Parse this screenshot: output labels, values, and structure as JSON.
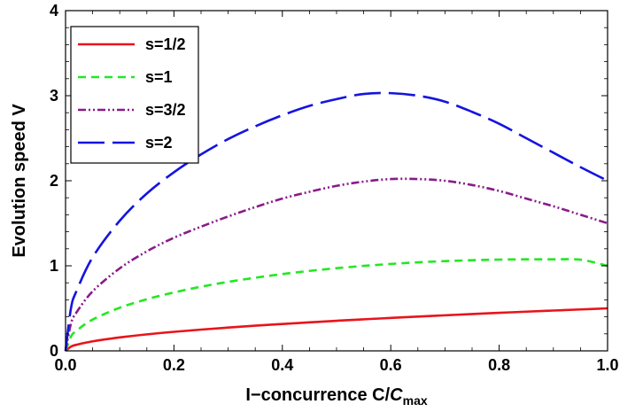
{
  "chart_data": {
    "type": "line",
    "xlabel": "I−concurrence C/",
    "xlabel_var": "C",
    "xlabel_sub": "max",
    "ylabel": "Evolution speed V",
    "xlim": [
      0,
      1
    ],
    "ylim": [
      0,
      4
    ],
    "x_ticks": [
      "0.0",
      "0.2",
      "0.4",
      "0.6",
      "0.8",
      "1.0"
    ],
    "y_ticks": [
      "0",
      "1",
      "2",
      "3",
      "4"
    ],
    "grid": false,
    "legend_position": "top-left",
    "series": [
      {
        "name": "s=1/2",
        "color": "#e8141b",
        "dash": "solid",
        "x": [
          0,
          0.01,
          0.02,
          0.05,
          0.1,
          0.15,
          0.2,
          0.25,
          0.3,
          0.35,
          0.4,
          0.45,
          0.5,
          0.55,
          0.6,
          0.65,
          0.7,
          0.75,
          0.8,
          0.85,
          0.9,
          0.95,
          1.0
        ],
        "y": [
          0,
          0.05,
          0.071,
          0.112,
          0.158,
          0.194,
          0.224,
          0.25,
          0.274,
          0.296,
          0.316,
          0.335,
          0.354,
          0.371,
          0.387,
          0.403,
          0.418,
          0.433,
          0.447,
          0.461,
          0.474,
          0.487,
          0.5
        ]
      },
      {
        "name": "s=1",
        "color": "#22e822",
        "dash": "short-dash",
        "x": [
          0,
          0.01,
          0.02,
          0.05,
          0.1,
          0.15,
          0.2,
          0.25,
          0.3,
          0.35,
          0.4,
          0.45,
          0.5,
          0.55,
          0.6,
          0.65,
          0.7,
          0.75,
          0.8,
          0.85,
          0.9,
          0.95,
          1.0
        ],
        "y": [
          0,
          0.168,
          0.236,
          0.368,
          0.507,
          0.607,
          0.687,
          0.754,
          0.811,
          0.86,
          0.903,
          0.94,
          0.972,
          0.999,
          1.022,
          1.041,
          1.055,
          1.066,
          1.073,
          1.076,
          1.076,
          1.072,
          1.0
        ]
      },
      {
        "name": "s=3/2",
        "color": "#8a1a8a",
        "dash": "dash-dot-dot",
        "x": [
          0,
          0.01,
          0.02,
          0.05,
          0.1,
          0.15,
          0.2,
          0.25,
          0.3,
          0.35,
          0.4,
          0.45,
          0.5,
          0.55,
          0.6,
          0.65,
          0.7,
          0.75,
          0.8,
          0.85,
          0.9,
          0.95,
          1.0
        ],
        "y": [
          0,
          0.32,
          0.45,
          0.7,
          0.97,
          1.17,
          1.33,
          1.46,
          1.58,
          1.69,
          1.79,
          1.87,
          1.94,
          1.99,
          2.02,
          2.02,
          2.0,
          1.95,
          1.88,
          1.79,
          1.7,
          1.6,
          1.5
        ]
      },
      {
        "name": "s=2",
        "color": "#1414e0",
        "dash": "long-dash",
        "x": [
          0,
          0.01,
          0.02,
          0.05,
          0.1,
          0.15,
          0.2,
          0.25,
          0.3,
          0.35,
          0.4,
          0.45,
          0.5,
          0.55,
          0.6,
          0.65,
          0.7,
          0.75,
          0.8,
          0.85,
          0.9,
          0.95,
          1.0
        ],
        "y": [
          0,
          0.5,
          0.7,
          1.1,
          1.53,
          1.85,
          2.1,
          2.31,
          2.49,
          2.64,
          2.77,
          2.88,
          2.96,
          3.02,
          3.03,
          3.0,
          2.93,
          2.81,
          2.67,
          2.5,
          2.33,
          2.16,
          2.0
        ]
      }
    ]
  }
}
